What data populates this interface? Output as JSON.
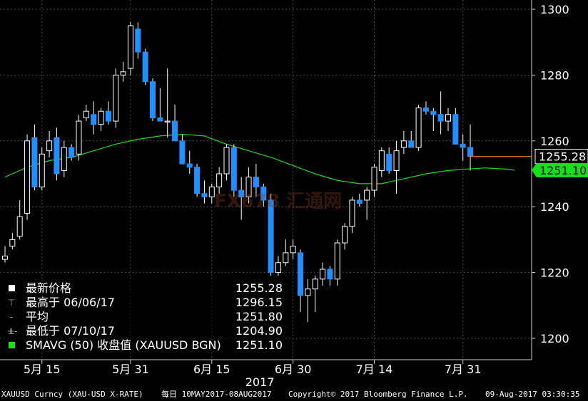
{
  "chart_data": {
    "type": "candlestick",
    "y_axis": {
      "ticks": [
        1200,
        1220,
        1240,
        1260,
        1280,
        1300
      ],
      "ylim": [
        1193,
        1302
      ],
      "side": "right"
    },
    "x_axis": {
      "tick_labels": [
        "5月 15",
        "5月 31",
        "6月 15",
        "6月 30",
        "7月 14",
        "7月 31"
      ],
      "tick_days": [
        5,
        17,
        28,
        39,
        50,
        62
      ],
      "year_label": "2017"
    },
    "candles": [
      {
        "o": 1224,
        "h": 1228,
        "l": 1223,
        "c": 1225
      },
      {
        "o": 1228,
        "h": 1232,
        "l": 1227,
        "c": 1230
      },
      {
        "o": 1231,
        "h": 1242,
        "l": 1230,
        "c": 1237
      },
      {
        "o": 1238,
        "h": 1262,
        "l": 1236,
        "c": 1260
      },
      {
        "o": 1261,
        "h": 1265,
        "l": 1245,
        "c": 1246
      },
      {
        "o": 1246,
        "h": 1258,
        "l": 1245,
        "c": 1256
      },
      {
        "o": 1257,
        "h": 1263,
        "l": 1255,
        "c": 1260
      },
      {
        "o": 1261,
        "h": 1264,
        "l": 1248,
        "c": 1250
      },
      {
        "o": 1251,
        "h": 1260,
        "l": 1249,
        "c": 1258
      },
      {
        "o": 1258,
        "h": 1259,
        "l": 1254,
        "c": 1255
      },
      {
        "o": 1256,
        "h": 1268,
        "l": 1254,
        "c": 1266
      },
      {
        "o": 1267,
        "h": 1271,
        "l": 1266,
        "c": 1269
      },
      {
        "o": 1268,
        "h": 1272,
        "l": 1262,
        "c": 1265
      },
      {
        "o": 1265,
        "h": 1270,
        "l": 1263,
        "c": 1269
      },
      {
        "o": 1269,
        "h": 1272,
        "l": 1265,
        "c": 1266
      },
      {
        "o": 1266,
        "h": 1282,
        "l": 1264,
        "c": 1280
      },
      {
        "o": 1280,
        "h": 1284,
        "l": 1278,
        "c": 1281
      },
      {
        "o": 1282,
        "h": 1296.15,
        "l": 1280,
        "c": 1295
      },
      {
        "o": 1294,
        "h": 1296,
        "l": 1285,
        "c": 1287
      },
      {
        "o": 1287,
        "h": 1288,
        "l": 1277,
        "c": 1278
      },
      {
        "o": 1278,
        "h": 1279,
        "l": 1266,
        "c": 1267
      },
      {
        "o": 1267,
        "h": 1276,
        "l": 1266,
        "c": 1266
      },
      {
        "o": 1266,
        "h": 1282,
        "l": 1261,
        "c": 1266
      },
      {
        "o": 1266,
        "h": 1271,
        "l": 1260,
        "c": 1260
      },
      {
        "o": 1260,
        "h": 1262,
        "l": 1253,
        "c": 1253
      },
      {
        "o": 1253,
        "h": 1257,
        "l": 1250,
        "c": 1252
      },
      {
        "o": 1252,
        "h": 1253,
        "l": 1243,
        "c": 1244
      },
      {
        "o": 1244,
        "h": 1248,
        "l": 1241,
        "c": 1243
      },
      {
        "o": 1243,
        "h": 1247,
        "l": 1241,
        "c": 1246
      },
      {
        "o": 1246,
        "h": 1252,
        "l": 1244,
        "c": 1250
      },
      {
        "o": 1250,
        "h": 1259,
        "l": 1248,
        "c": 1258
      },
      {
        "o": 1258,
        "h": 1259,
        "l": 1243,
        "c": 1245
      },
      {
        "o": 1245,
        "h": 1249,
        "l": 1236,
        "c": 1243
      },
      {
        "o": 1243,
        "h": 1252,
        "l": 1241,
        "c": 1249
      },
      {
        "o": 1249,
        "h": 1253,
        "l": 1243,
        "c": 1246
      },
      {
        "o": 1246,
        "h": 1247,
        "l": 1240,
        "c": 1242
      },
      {
        "o": 1242,
        "h": 1244,
        "l": 1219,
        "c": 1220
      },
      {
        "o": 1220,
        "h": 1225,
        "l": 1219,
        "c": 1223
      },
      {
        "o": 1223,
        "h": 1230,
        "l": 1222,
        "c": 1226
      },
      {
        "o": 1226,
        "h": 1230,
        "l": 1224,
        "c": 1228
      },
      {
        "o": 1226,
        "h": 1227,
        "l": 1208,
        "c": 1213
      },
      {
        "o": 1213,
        "h": 1218,
        "l": 1204.9,
        "c": 1215
      },
      {
        "o": 1215,
        "h": 1219,
        "l": 1208,
        "c": 1218
      },
      {
        "o": 1218,
        "h": 1223,
        "l": 1216,
        "c": 1221
      },
      {
        "o": 1221,
        "h": 1222,
        "l": 1216,
        "c": 1218
      },
      {
        "o": 1218,
        "h": 1230,
        "l": 1216,
        "c": 1229
      },
      {
        "o": 1229,
        "h": 1235,
        "l": 1227,
        "c": 1234
      },
      {
        "o": 1234,
        "h": 1243,
        "l": 1232,
        "c": 1242
      },
      {
        "o": 1242,
        "h": 1244,
        "l": 1240,
        "c": 1241
      },
      {
        "o": 1242,
        "h": 1246,
        "l": 1236,
        "c": 1245
      },
      {
        "o": 1245,
        "h": 1253,
        "l": 1243,
        "c": 1252
      },
      {
        "o": 1251,
        "h": 1258,
        "l": 1249,
        "c": 1257
      },
      {
        "o": 1256,
        "h": 1258,
        "l": 1250,
        "c": 1251
      },
      {
        "o": 1251,
        "h": 1260,
        "l": 1244,
        "c": 1257
      },
      {
        "o": 1258,
        "h": 1263,
        "l": 1256,
        "c": 1260
      },
      {
        "o": 1260,
        "h": 1263,
        "l": 1258,
        "c": 1258
      },
      {
        "o": 1258,
        "h": 1271,
        "l": 1257,
        "c": 1270
      },
      {
        "o": 1270,
        "h": 1272,
        "l": 1268,
        "c": 1269
      },
      {
        "o": 1269,
        "h": 1270,
        "l": 1263,
        "c": 1268
      },
      {
        "o": 1268,
        "h": 1275,
        "l": 1262,
        "c": 1266
      },
      {
        "o": 1266,
        "h": 1270,
        "l": 1263,
        "c": 1268
      },
      {
        "o": 1268,
        "h": 1270,
        "l": 1259,
        "c": 1259
      },
      {
        "o": 1259,
        "h": 1262,
        "l": 1254,
        "c": 1258
      },
      {
        "o": 1258,
        "h": 1265,
        "l": 1251,
        "c": 1255.28
      }
    ],
    "sma": [
      {
        "d": 0,
        "v": 1249
      },
      {
        "d": 3,
        "v": 1252
      },
      {
        "d": 6,
        "v": 1254
      },
      {
        "d": 9,
        "v": 1255
      },
      {
        "d": 12,
        "v": 1257
      },
      {
        "d": 15,
        "v": 1259
      },
      {
        "d": 18,
        "v": 1260.5
      },
      {
        "d": 21,
        "v": 1261.5
      },
      {
        "d": 24,
        "v": 1262
      },
      {
        "d": 27,
        "v": 1261.5
      },
      {
        "d": 30,
        "v": 1259
      },
      {
        "d": 33,
        "v": 1257
      },
      {
        "d": 36,
        "v": 1255
      },
      {
        "d": 39,
        "v": 1252.5
      },
      {
        "d": 42,
        "v": 1250
      },
      {
        "d": 45,
        "v": 1248
      },
      {
        "d": 48,
        "v": 1247
      },
      {
        "d": 51,
        "v": 1247
      },
      {
        "d": 54,
        "v": 1248.5
      },
      {
        "d": 57,
        "v": 1250
      },
      {
        "d": 60,
        "v": 1251
      },
      {
        "d": 63,
        "v": 1251.5
      },
      {
        "d": 65,
        "v": 1251.8
      },
      {
        "d": 68,
        "v": 1251.4
      },
      {
        "d": 69,
        "v": 1251.1
      }
    ],
    "last_price_label": "1255.28",
    "sma_label": "1251.10",
    "colors": {
      "up": "#ffffff",
      "down": "#1e90ff",
      "sma": "#16e01a",
      "last": "#ff8c1a",
      "grid": "#4a4a4a"
    }
  },
  "legend": [
    {
      "marker": "box-white",
      "label": "最新价格",
      "value": "1255.28"
    },
    {
      "marker": "high",
      "label": "最高于 06/06/17",
      "value": "1296.15"
    },
    {
      "marker": "avg",
      "label": "平均",
      "value": "1251.80"
    },
    {
      "marker": "low",
      "label": "最低于 07/10/17",
      "value": "1204.90"
    },
    {
      "marker": "box-green",
      "label": "SMAVG (50) 收盘值 (XAUUSD BGN)",
      "value": "1251.10"
    }
  ],
  "footer": {
    "ticker": "XAUUSD Curncy (XAU-USD X-RATE)",
    "range": "每日 10MAY2017-08AUG2017",
    "copyright": "Copyright© 2017 Bloomberg Finance L.P.",
    "timestamp": "09-Aug-2017 03:30:35"
  },
  "watermark": "FX678 汇通网"
}
